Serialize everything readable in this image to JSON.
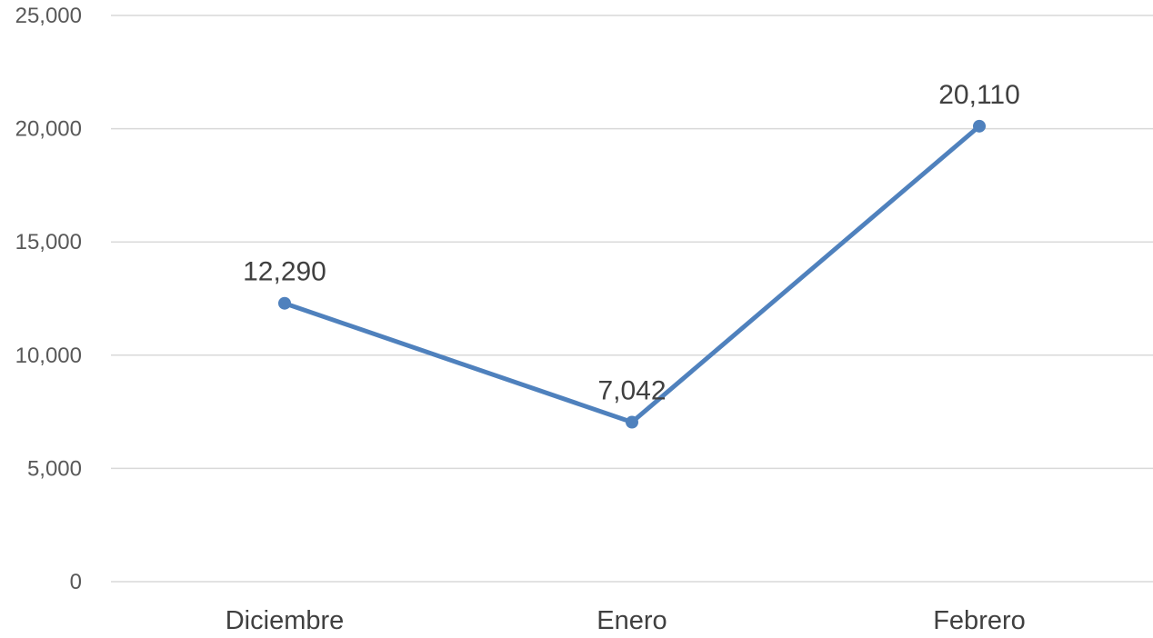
{
  "chart_data": {
    "type": "line",
    "title": "",
    "xlabel": "",
    "ylabel": "",
    "categories": [
      "Diciembre",
      "Enero",
      "Febrero"
    ],
    "series": [
      {
        "values": [
          12290,
          7042,
          20110
        ],
        "color": "#4f81bd"
      }
    ],
    "data_labels": [
      "12,290",
      "7,042",
      "20,110"
    ],
    "ylim": [
      0,
      25000
    ],
    "yticks": [
      0,
      5000,
      10000,
      15000,
      20000,
      25000
    ],
    "ytick_labels": [
      "0",
      "5,000",
      "10,000",
      "15,000",
      "20,000",
      "25,000"
    ],
    "grid": true,
    "legend": "none",
    "markers": "circle"
  }
}
